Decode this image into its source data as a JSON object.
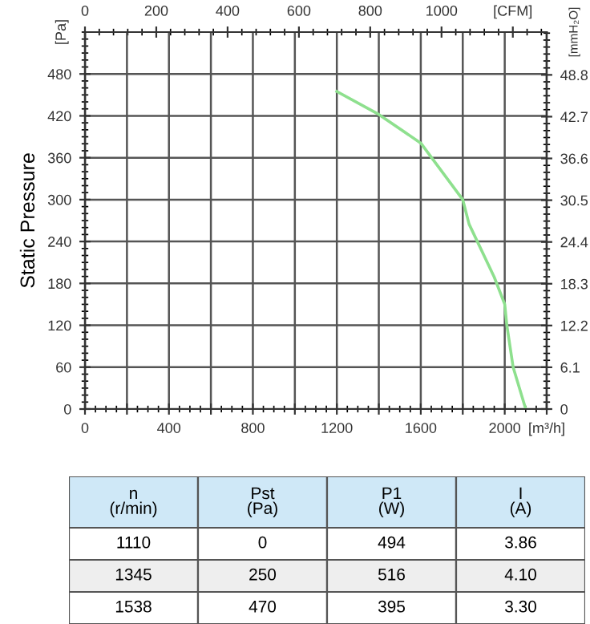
{
  "chart_data": [
    {
      "type": "line",
      "ylabel": "Static Pressure",
      "x": [
        1200,
        1400,
        1600,
        1800,
        1830,
        1950,
        2000,
        2010,
        2040,
        2100
      ],
      "series": [
        {
          "color": "#8ee08e",
          "values": [
            455,
            422,
            381,
            300,
            265,
            189,
            150,
            120,
            60,
            0
          ]
        }
      ],
      "xlim": [
        0,
        2200
      ],
      "xticks": [
        0,
        {
          "value": 200,
          "label": null
        },
        400,
        {
          "value": 600,
          "label": null
        },
        800,
        {
          "value": 1000,
          "label": null
        },
        1200,
        {
          "value": 1400,
          "label": null
        },
        1600,
        {
          "value": 1800,
          "label": null
        },
        2000,
        {
          "value": 2200,
          "label": "[m³/h]"
        }
      ],
      "x2lim": [
        0,
        1295
      ],
      "x2ticks": [
        0,
        200,
        400,
        600,
        800,
        1000,
        {
          "value": 1200,
          "label": "[CFM]"
        }
      ],
      "ylim": [
        0,
        540
      ],
      "yticks": [
        0,
        60,
        120,
        180,
        240,
        300,
        360,
        420,
        480
      ],
      "annotations": [
        "[Pa]"
      ],
      "y2label": "[mmH₂O]",
      "y2lim": [
        0,
        55.05
      ],
      "y2ticks": [
        0,
        6.1,
        12.2,
        18.3,
        24.4,
        30.5,
        36.6,
        42.7,
        48.8
      ],
      "grid": true,
      "marker": "none",
      "line_style": "solid"
    },
    {
      "type": "other",
      "categories": [
        "n\n(r/min)",
        "Pst\n(Pa)",
        "P1\n(W)",
        "I\n(A)"
      ],
      "annotations": [
        "1110",
        "0",
        "494",
        "3.86",
        "1345",
        "250",
        "516",
        "4.10",
        "1538",
        "470",
        "395",
        "3.30"
      ]
    }
  ]
}
